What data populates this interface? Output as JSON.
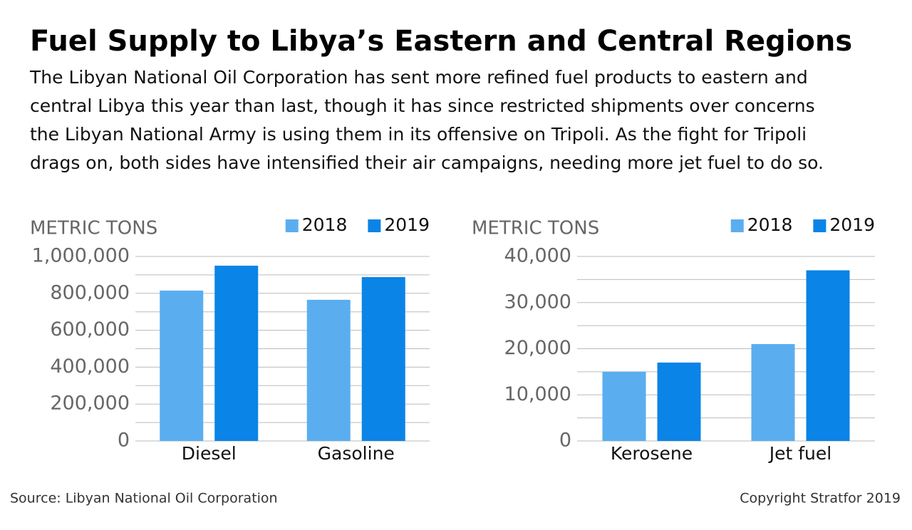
{
  "title": "Fuel Supply to Libya’s Eastern and Central Regions",
  "subtitle": [
    "The Libyan National Oil Corporation has sent more refined fuel products to eastern and",
    "central Libya this year than last, though it has since restricted shipments over concerns",
    "the Libyan National Army is using them in its offensive on Tripoli. As the fight for Tripoli",
    "drags on, both sides have intensified their air campaigns, needing more jet fuel to do so."
  ],
  "source": "Source: Libyan National Oil Corporation",
  "copyright": "Copyright Stratfor 2019",
  "chart_data": [
    {
      "type": "bar",
      "y_label": "METRIC TONS",
      "categories": [
        "Diesel",
        "Gasoline"
      ],
      "series": [
        {
          "name": "2018",
          "color": "#5aaeef",
          "values": [
            815000,
            765000
          ]
        },
        {
          "name": "2019",
          "color": "#0a84e6",
          "values": [
            950000,
            888000
          ]
        }
      ],
      "ylim": [
        0,
        1000000
      ],
      "yticks": [
        0,
        {
          "value": 200000,
          "label": "200,000"
        },
        {
          "value": 400000,
          "label": "400,000"
        },
        {
          "value": 600000,
          "label": "600,000"
        },
        {
          "value": 800000,
          "label": "800,000"
        },
        {
          "value": 1000000,
          "label": "1,000,000"
        }
      ],
      "minor_yticks": [
        100000,
        300000,
        500000,
        700000,
        900000
      ],
      "grid": true,
      "legend": "top-right"
    },
    {
      "type": "bar",
      "y_label": "METRIC TONS",
      "categories": [
        "Kerosene",
        "Jet fuel"
      ],
      "series": [
        {
          "name": "2018",
          "color": "#5aaeef",
          "values": [
            15000,
            21000
          ]
        },
        {
          "name": "2019",
          "color": "#0a84e6",
          "values": [
            17000,
            37000
          ]
        }
      ],
      "ylim": [
        0,
        40000
      ],
      "yticks": [
        0,
        {
          "value": 10000,
          "label": "10,000"
        },
        {
          "value": 20000,
          "label": "20,000"
        },
        {
          "value": 30000,
          "label": "30,000"
        },
        {
          "value": 40000,
          "label": "40,000"
        }
      ],
      "minor_yticks": [
        5000,
        15000,
        25000,
        35000
      ],
      "grid": true,
      "legend": "top-right"
    }
  ]
}
